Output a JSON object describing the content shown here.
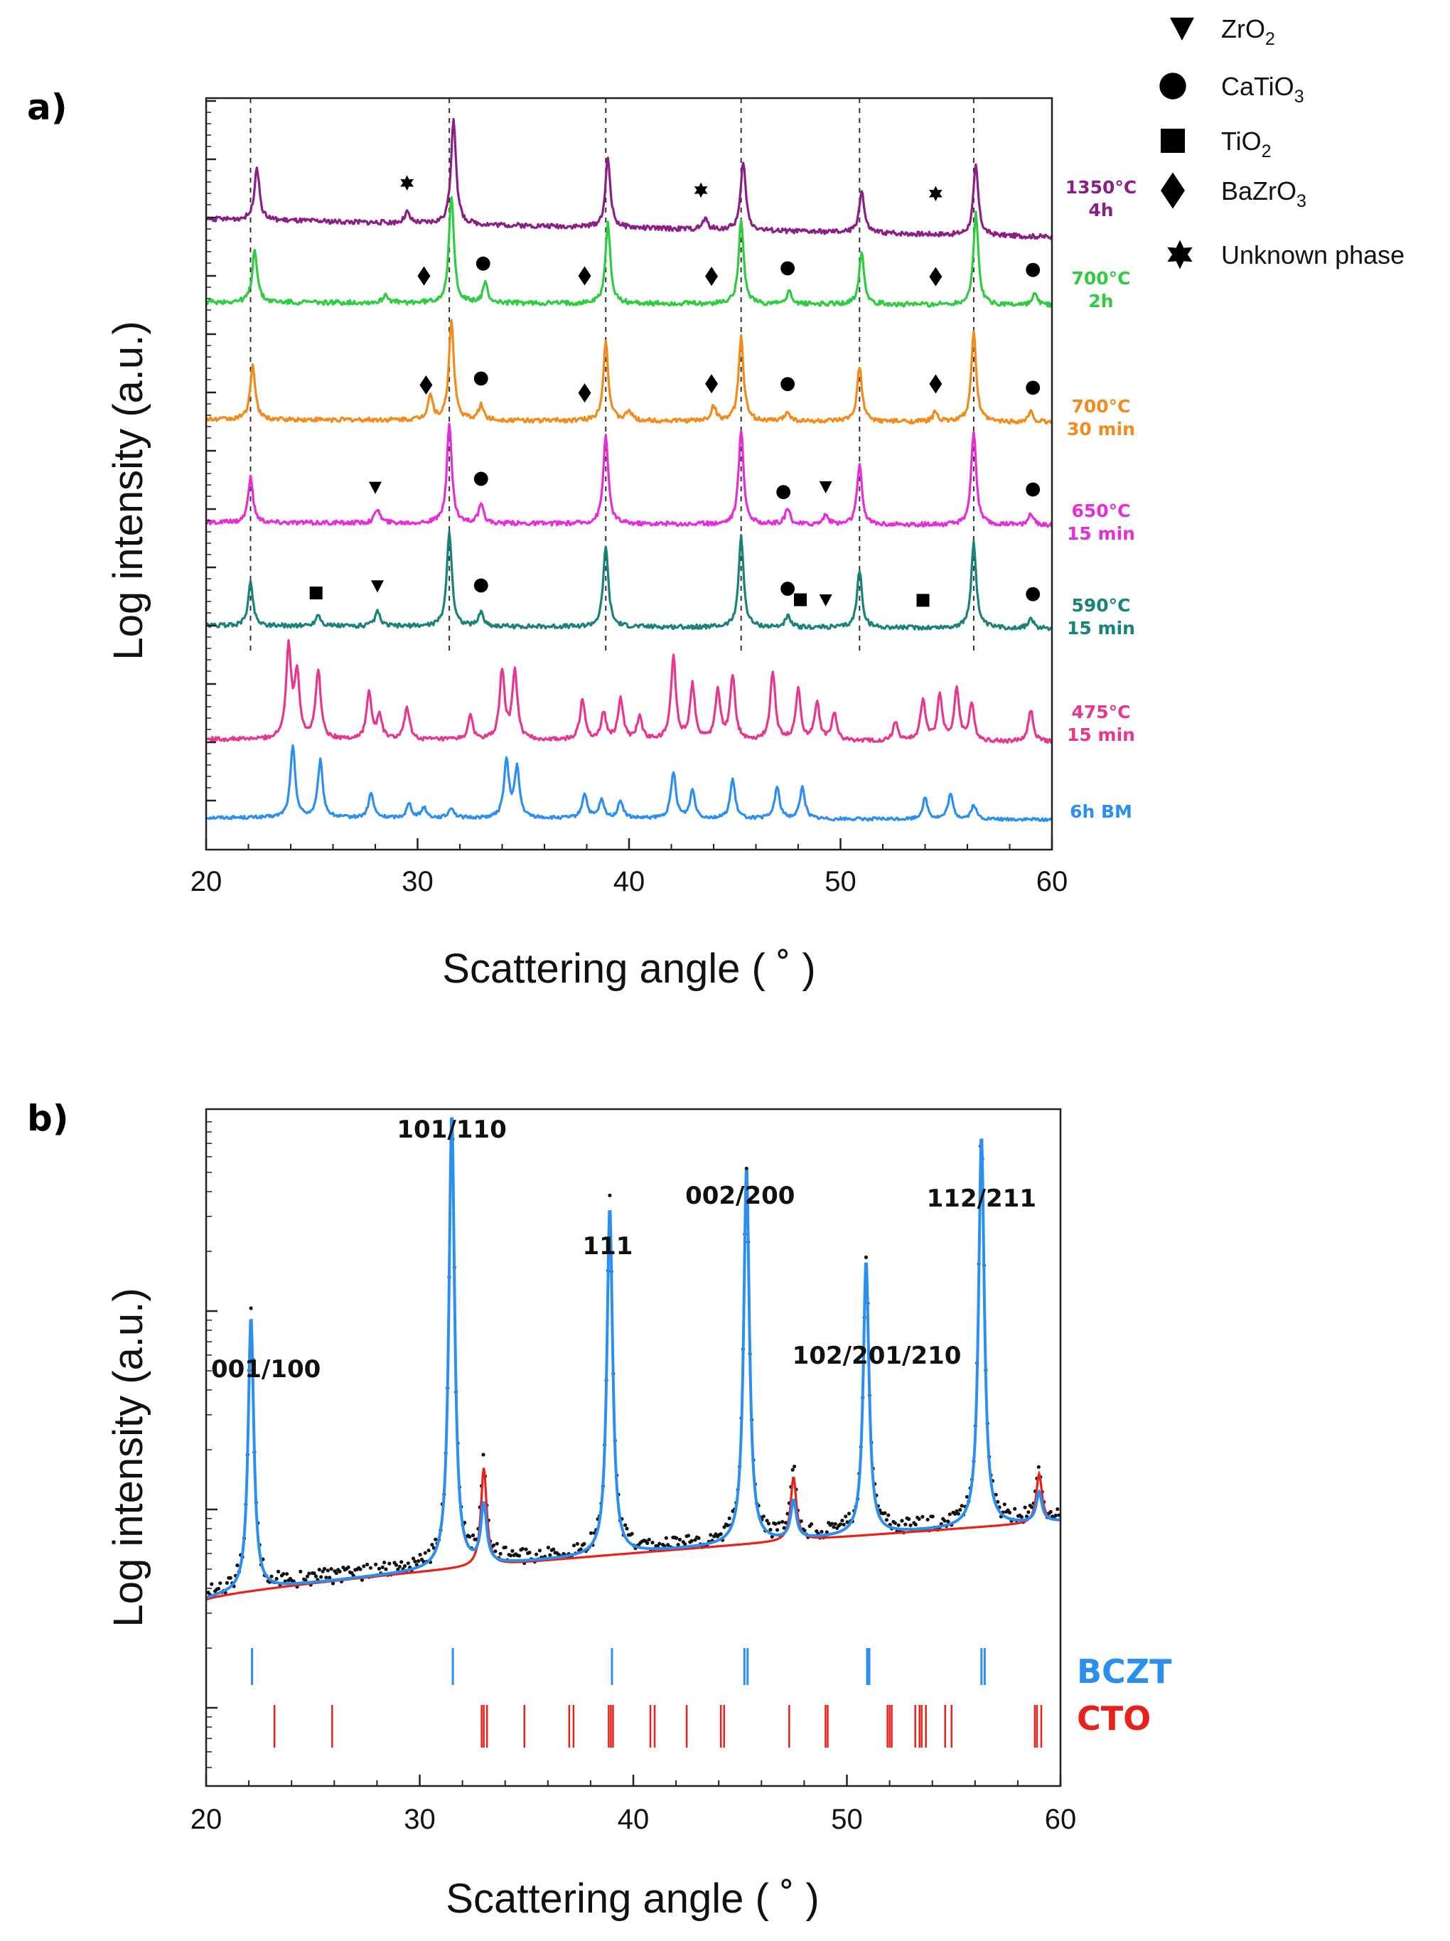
{
  "chart_data": [
    {
      "panel": "a)",
      "type": "line",
      "xlabel": "Scattering angle ( ˚ )",
      "ylabel": "Log intensity (a.u.)",
      "xlim": [
        20,
        60
      ],
      "x_ticks": [
        "20",
        "30",
        "40",
        "50",
        "60"
      ],
      "reference_lines_x": [
        22.1,
        31.5,
        38.9,
        45.3,
        50.9,
        56.3
      ],
      "legend": [
        {
          "symbol": "triangle-down",
          "label": "ZrO",
          "sub": "2"
        },
        {
          "symbol": "circle",
          "label": "CaTiO",
          "sub": "3"
        },
        {
          "symbol": "square",
          "label": "TiO",
          "sub": "2"
        },
        {
          "symbol": "diamond",
          "label": "BaZrO",
          "sub": "3"
        },
        {
          "symbol": "star",
          "label": "Unknown phase",
          "sub": ""
        }
      ],
      "series": [
        {
          "line1": "6h BM",
          "line2": "",
          "color": "#2a8ff0",
          "peaks": [
            [
              24.1,
              1.0
            ],
            [
              25.4,
              0.8
            ],
            [
              27.8,
              0.35
            ],
            [
              29.6,
              0.2
            ],
            [
              30.3,
              0.15
            ],
            [
              31.6,
              0.15
            ],
            [
              34.2,
              0.8
            ],
            [
              34.7,
              0.7
            ],
            [
              37.9,
              0.35
            ],
            [
              38.7,
              0.25
            ],
            [
              39.6,
              0.25
            ],
            [
              42.1,
              0.65
            ],
            [
              43.0,
              0.4
            ],
            [
              44.9,
              0.55
            ],
            [
              47.0,
              0.45
            ],
            [
              48.2,
              0.45
            ],
            [
              54.0,
              0.3
            ],
            [
              55.2,
              0.35
            ],
            [
              56.3,
              0.2
            ]
          ]
        },
        {
          "line1": "475°C",
          "line2": "15 min",
          "color": "#e8368f",
          "peaks": [
            [
              23.9,
              1.0
            ],
            [
              24.3,
              0.7
            ],
            [
              25.3,
              0.75
            ],
            [
              27.7,
              0.5
            ],
            [
              28.2,
              0.25
            ],
            [
              29.5,
              0.35
            ],
            [
              32.5,
              0.25
            ],
            [
              34.0,
              0.75
            ],
            [
              34.6,
              0.75
            ],
            [
              37.8,
              0.45
            ],
            [
              38.8,
              0.3
            ],
            [
              39.6,
              0.45
            ],
            [
              40.5,
              0.25
            ],
            [
              42.1,
              0.9
            ],
            [
              43.0,
              0.6
            ],
            [
              44.2,
              0.55
            ],
            [
              44.9,
              0.7
            ],
            [
              46.8,
              0.75
            ],
            [
              48.0,
              0.55
            ],
            [
              48.9,
              0.4
            ],
            [
              49.7,
              0.3
            ],
            [
              52.6,
              0.2
            ],
            [
              53.9,
              0.45
            ],
            [
              54.7,
              0.5
            ],
            [
              55.5,
              0.55
            ],
            [
              56.2,
              0.4
            ],
            [
              59.0,
              0.35
            ]
          ]
        },
        {
          "line1": "590°C",
          "line2": "15 min",
          "color": "#19827a",
          "peaks": [
            [
              22.1,
              0.45
            ],
            [
              25.3,
              0.12
            ],
            [
              28.1,
              0.15
            ],
            [
              31.5,
              1.0
            ],
            [
              33.0,
              0.15
            ],
            [
              38.9,
              0.85
            ],
            [
              45.3,
              0.95
            ],
            [
              47.5,
              0.12
            ],
            [
              50.9,
              0.6
            ],
            [
              56.3,
              0.9
            ],
            [
              59.0,
              0.1
            ]
          ]
        },
        {
          "line1": "650°C",
          "line2": "15 min",
          "color": "#e62ed8",
          "peaks": [
            [
              22.1,
              0.45
            ],
            [
              28.1,
              0.15
            ],
            [
              31.5,
              1.0
            ],
            [
              33.0,
              0.18
            ],
            [
              38.9,
              0.9
            ],
            [
              45.3,
              0.95
            ],
            [
              47.5,
              0.15
            ],
            [
              49.3,
              0.1
            ],
            [
              50.9,
              0.6
            ],
            [
              56.3,
              0.95
            ],
            [
              59.0,
              0.12
            ]
          ]
        },
        {
          "line1": "700°C",
          "line2": "30 min",
          "color": "#f28a1c",
          "peaks": [
            [
              22.2,
              0.55
            ],
            [
              30.6,
              0.25
            ],
            [
              31.6,
              1.0
            ],
            [
              33.0,
              0.15
            ],
            [
              38.9,
              0.8
            ],
            [
              40.0,
              0.1
            ],
            [
              44.0,
              0.15
            ],
            [
              45.3,
              0.85
            ],
            [
              47.5,
              0.1
            ],
            [
              50.9,
              0.55
            ],
            [
              54.5,
              0.1
            ],
            [
              56.3,
              0.9
            ],
            [
              59.0,
              0.1
            ]
          ]
        },
        {
          "line1": "700°C",
          "line2": "2h",
          "color": "#2ecc40",
          "peaks": [
            [
              22.3,
              0.5
            ],
            [
              28.5,
              0.08
            ],
            [
              31.6,
              1.0
            ],
            [
              33.2,
              0.18
            ],
            [
              39.0,
              0.75
            ],
            [
              45.3,
              0.8
            ],
            [
              47.6,
              0.12
            ],
            [
              51.0,
              0.5
            ],
            [
              56.4,
              0.85
            ],
            [
              59.2,
              0.1
            ]
          ]
        },
        {
          "line1": "1350°C",
          "line2": "4h",
          "color": "#8b1f86",
          "peaks": [
            [
              22.4,
              0.5
            ],
            [
              29.5,
              0.1
            ],
            [
              31.7,
              1.0
            ],
            [
              39.0,
              0.65
            ],
            [
              43.6,
              0.1
            ],
            [
              45.4,
              0.65
            ],
            [
              51.0,
              0.4
            ],
            [
              56.4,
              0.65
            ]
          ]
        }
      ],
      "phase_markers": [
        {
          "symbol": "star",
          "x": 29.5,
          "curve": 6
        },
        {
          "symbol": "star",
          "x": 43.4,
          "curve": 6
        },
        {
          "symbol": "star",
          "x": 54.5,
          "curve": 6
        },
        {
          "symbol": "diamond",
          "x": 30.3,
          "curve": 5
        },
        {
          "symbol": "circle",
          "x": 33.1,
          "curve": 5
        },
        {
          "symbol": "diamond",
          "x": 37.9,
          "curve": 5
        },
        {
          "symbol": "diamond",
          "x": 43.9,
          "curve": 5
        },
        {
          "symbol": "circle",
          "x": 47.5,
          "curve": 5
        },
        {
          "symbol": "diamond",
          "x": 54.5,
          "curve": 5
        },
        {
          "symbol": "circle",
          "x": 59.1,
          "curve": 5
        },
        {
          "symbol": "diamond",
          "x": 30.4,
          "curve": 4
        },
        {
          "symbol": "circle",
          "x": 33.0,
          "curve": 4
        },
        {
          "symbol": "diamond",
          "x": 37.9,
          "curve": 4
        },
        {
          "symbol": "diamond",
          "x": 43.9,
          "curve": 4
        },
        {
          "symbol": "circle",
          "x": 47.5,
          "curve": 4
        },
        {
          "symbol": "diamond",
          "x": 54.5,
          "curve": 4
        },
        {
          "symbol": "circle",
          "x": 59.1,
          "curve": 4
        },
        {
          "symbol": "triangle-down",
          "x": 28.0,
          "curve": 3
        },
        {
          "symbol": "circle",
          "x": 33.0,
          "curve": 3
        },
        {
          "symbol": "circle",
          "x": 47.3,
          "curve": 3
        },
        {
          "symbol": "triangle-down",
          "x": 49.3,
          "curve": 3
        },
        {
          "symbol": "circle",
          "x": 59.1,
          "curve": 3
        },
        {
          "symbol": "square",
          "x": 25.2,
          "curve": 2
        },
        {
          "symbol": "triangle-down",
          "x": 28.1,
          "curve": 2
        },
        {
          "symbol": "circle",
          "x": 33.0,
          "curve": 2
        },
        {
          "symbol": "circle",
          "x": 47.5,
          "curve": 2
        },
        {
          "symbol": "square",
          "x": 48.1,
          "curve": 2
        },
        {
          "symbol": "triangle-down",
          "x": 49.3,
          "curve": 2
        },
        {
          "symbol": "square",
          "x": 53.9,
          "curve": 2
        },
        {
          "symbol": "circle",
          "x": 59.1,
          "curve": 2
        }
      ]
    },
    {
      "panel": "b)",
      "type": "line",
      "xlabel": "Scattering angle ( ˚ )",
      "ylabel": "Log intensity (a.u.)",
      "xlim": [
        20,
        60
      ],
      "x_ticks": [
        "20",
        "30",
        "40",
        "50",
        "60"
      ],
      "peak_labels": [
        {
          "text": "001/100",
          "x": 22.1
        },
        {
          "text": "101/110",
          "x": 31.5
        },
        {
          "text": "111",
          "x": 38.9
        },
        {
          "text": "002/200",
          "x": 45.3
        },
        {
          "text": "102/201/210",
          "x": 50.9
        },
        {
          "text": "112/211",
          "x": 56.3
        }
      ],
      "series": [
        {
          "name": "BCZT",
          "color": "#2a8ff0",
          "peaks": [
            [
              22.1,
              0.56
            ],
            [
              31.5,
              0.93
            ],
            [
              38.9,
              0.71
            ],
            [
              45.3,
              0.77
            ],
            [
              50.9,
              0.56
            ],
            [
              56.3,
              0.8
            ]
          ],
          "ticks": [
            22.15,
            31.55,
            39.0,
            45.2,
            45.35,
            50.95,
            51.05,
            56.3,
            56.45
          ]
        },
        {
          "name": "CTO",
          "color": "#e8211a",
          "peaks": [
            [
              33.0,
              0.2
            ],
            [
              47.5,
              0.13
            ],
            [
              59.0,
              0.1
            ]
          ],
          "ticks": [
            23.2,
            25.9,
            32.9,
            33.0,
            33.15,
            34.9,
            37.0,
            37.2,
            38.85,
            38.95,
            39.05,
            40.8,
            41.0,
            42.5,
            44.1,
            44.25,
            47.3,
            49.0,
            49.1,
            51.9,
            52.0,
            52.1,
            53.2,
            53.4,
            53.5,
            53.7,
            54.6,
            54.9,
            58.8,
            58.9,
            59.1
          ]
        }
      ]
    }
  ]
}
